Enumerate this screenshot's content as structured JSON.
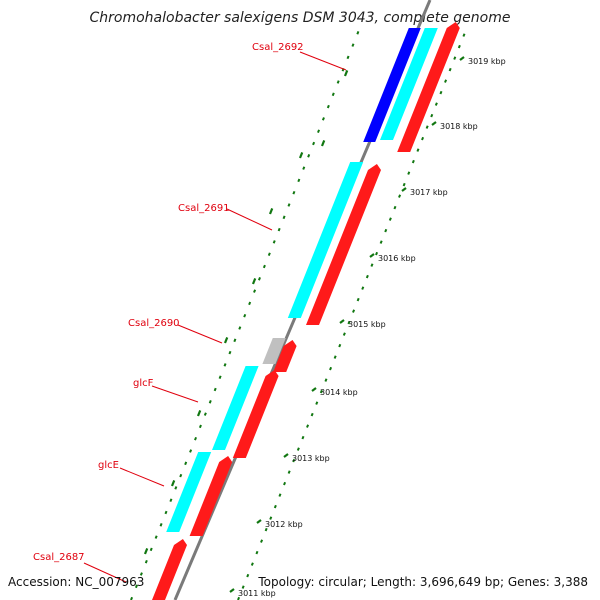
{
  "title": "Chromohalobacter salexigens DSM 3043, complete genome",
  "accession": "Accession: NC_007963",
  "stats": "Topology: circular; Length: 3,696,649 bp; Genes: 3,388",
  "colors": {
    "forward_cds": "#ff1a1a",
    "reverse_cds": "#00ffff",
    "other_cds": "#0000ff",
    "pseudo": "#c0c0c0",
    "backbone": "#7a7a7a",
    "gc_dots": "#117711",
    "label": "#e0000e"
  },
  "gene_labels": [
    {
      "name": "Csal_2692"
    },
    {
      "name": "Csal_2691"
    },
    {
      "name": "Csal_2690"
    },
    {
      "name": "glcF"
    },
    {
      "name": "glcE"
    },
    {
      "name": "Csal_2687"
    }
  ],
  "scale_labels": [
    "3019 kbp",
    "3018 kbp",
    "3017 kbp",
    "3016 kbp",
    "3015 kbp",
    "3014 kbp",
    "3013 kbp",
    "3012 kbp",
    "3011 kbp"
  ]
}
